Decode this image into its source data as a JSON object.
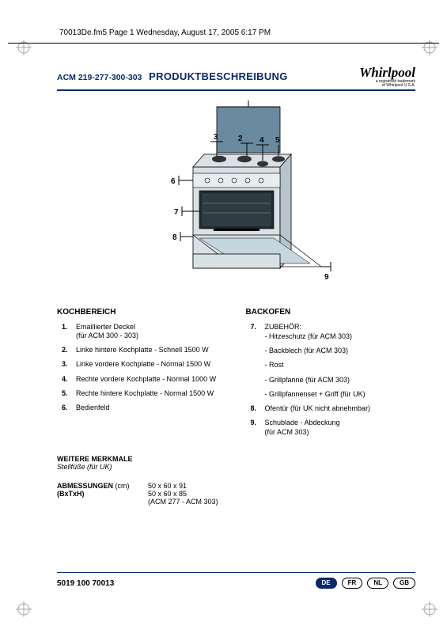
{
  "page_meta": "70013De.fm5  Page 1  Wednesday, August 17, 2005  6:17 PM",
  "title": {
    "model_range": "ACM 219-277-300-303",
    "description": "PRODUKTBESCHREIBUNG",
    "brand": "Whirlpool"
  },
  "diagram": {
    "labels": [
      "1",
      "2",
      "3",
      "4",
      "5",
      "6",
      "7",
      "8",
      "9"
    ],
    "body_fill": "#d9e1e5",
    "panel_fill": "#b8c4cc",
    "splash_fill": "#6a8aa0",
    "stroke": "#000000"
  },
  "columns": {
    "left": {
      "heading": "KOCHBEREICH",
      "items": [
        {
          "num": "1.",
          "text": "Emaillierter Deckel",
          "sub": "(für ACM 300 - 303)"
        },
        {
          "num": "2.",
          "text": "Linke hintere Kochplatte - Schnell 1500 W"
        },
        {
          "num": "3.",
          "text": "Linke vordere Kochplatte - Normal 1500 W"
        },
        {
          "num": "4.",
          "text": "Rechte vordere Kochplatte - Normal 1000 W"
        },
        {
          "num": "5.",
          "text": "Rechte hintere Kochplatte - Normal 1500 W"
        },
        {
          "num": "6.",
          "text": "Bedienfeld"
        }
      ]
    },
    "right": {
      "heading": "BACKOFEN",
      "items": [
        {
          "num": "7.",
          "text": "ZUBEHÖR:",
          "subs": [
            "Hitzeschutz (für ACM 303)",
            "Backblech (für ACM 303)",
            "Rost",
            "Grillpfanne (für ACM 303)",
            "Grillpfannenset + Griff (für UK)"
          ]
        },
        {
          "num": "8.",
          "text": "Ofentür (für UK nicht abnehmbar)"
        },
        {
          "num": "9.",
          "text": "Schublade - Abdeckung",
          "sub": "(für ACM 303)"
        }
      ]
    }
  },
  "features": {
    "heading": "WEITERE MERKMALE",
    "text": "Stellfüße (für UK)"
  },
  "dimensions": {
    "label1": "ABMESSUNGEN",
    "unit": "(cm)",
    "label2": "(BxTxH)",
    "val1": "50 x 60 x 91",
    "val2": "50 x 60 x 85",
    "val2_note": "(ACM 277 - ACM 303)"
  },
  "footer": {
    "partno": "5019 100 70013",
    "langs": [
      "DE",
      "FR",
      "NL",
      "GB"
    ],
    "active_lang": "DE"
  }
}
